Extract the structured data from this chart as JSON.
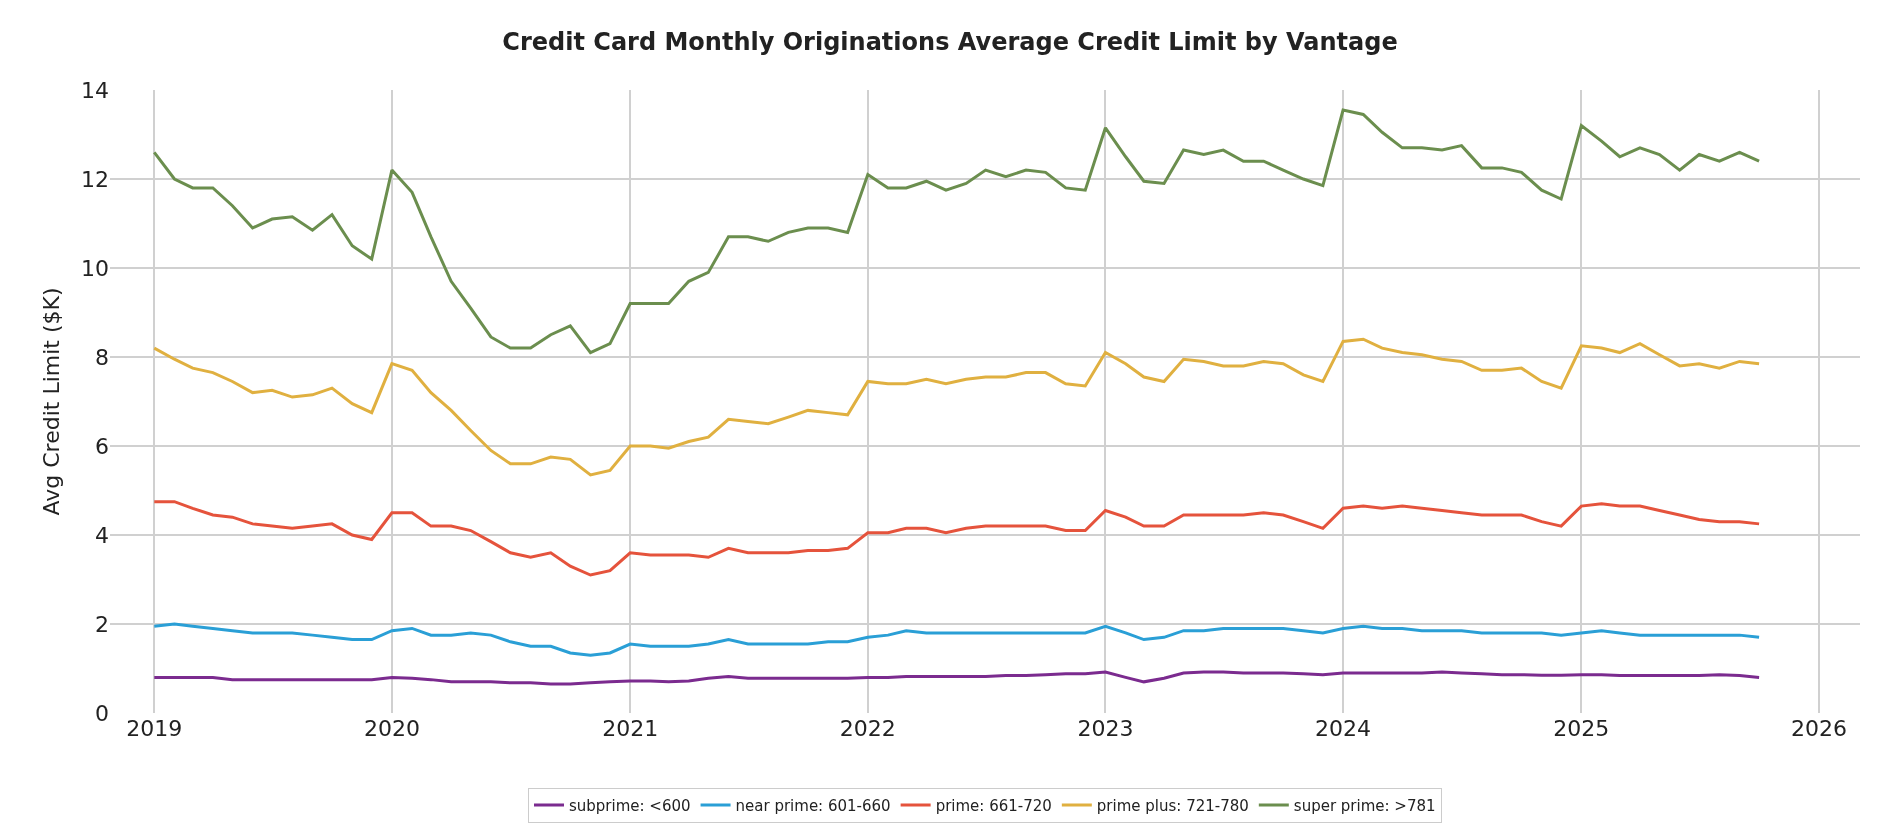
{
  "chart_data": {
    "type": "line",
    "title": "Credit Card Monthly Originations Average Credit Limit by Vantage",
    "ylabel": "Avg Credit Limit ($K)",
    "x": [
      "2019-01",
      "2019-02",
      "2019-03",
      "2019-04",
      "2019-05",
      "2019-06",
      "2019-07",
      "2019-08",
      "2019-09",
      "2019-10",
      "2019-11",
      "2019-12",
      "2020-01",
      "2020-02",
      "2020-03",
      "2020-04",
      "2020-05",
      "2020-06",
      "2020-07",
      "2020-08",
      "2020-09",
      "2020-10",
      "2020-11",
      "2020-12",
      "2021-01",
      "2021-02",
      "2021-03",
      "2021-04",
      "2021-05",
      "2021-06",
      "2021-07",
      "2021-08",
      "2021-09",
      "2021-10",
      "2021-11",
      "2021-12",
      "2022-01",
      "2022-02",
      "2022-03",
      "2022-04",
      "2022-05",
      "2022-06",
      "2022-07",
      "2022-08",
      "2022-09",
      "2022-10",
      "2022-11",
      "2022-12",
      "2023-01",
      "2023-02",
      "2023-03",
      "2023-04",
      "2023-05",
      "2023-06",
      "2023-07",
      "2023-08",
      "2023-09",
      "2023-10",
      "2023-11",
      "2023-12",
      "2024-01",
      "2024-02",
      "2024-03",
      "2024-04",
      "2024-05",
      "2024-06",
      "2024-07",
      "2024-08",
      "2024-09",
      "2024-10",
      "2024-11",
      "2024-12",
      "2025-01",
      "2025-02",
      "2025-03",
      "2025-04",
      "2025-05",
      "2025-06",
      "2025-07",
      "2025-08",
      "2025-09",
      "2025-10"
    ],
    "series": [
      {
        "name": "subprime: <600",
        "color": "#7b2b8f",
        "values": [
          0.8,
          0.8,
          0.8,
          0.8,
          0.75,
          0.75,
          0.75,
          0.75,
          0.75,
          0.75,
          0.75,
          0.75,
          0.8,
          0.78,
          0.75,
          0.7,
          0.7,
          0.7,
          0.68,
          0.68,
          0.65,
          0.65,
          0.68,
          0.7,
          0.72,
          0.72,
          0.7,
          0.72,
          0.78,
          0.82,
          0.78,
          0.78,
          0.78,
          0.78,
          0.78,
          0.78,
          0.8,
          0.8,
          0.82,
          0.82,
          0.82,
          0.82,
          0.82,
          0.84,
          0.84,
          0.86,
          0.88,
          0.88,
          0.92,
          0.8,
          0.7,
          0.78,
          0.9,
          0.92,
          0.92,
          0.9,
          0.9,
          0.9,
          0.88,
          0.86,
          0.9,
          0.9,
          0.9,
          0.9,
          0.9,
          0.92,
          0.9,
          0.88,
          0.86,
          0.86,
          0.85,
          0.85,
          0.86,
          0.86,
          0.84,
          0.84,
          0.84,
          0.84,
          0.84,
          0.86,
          0.84,
          0.8
        ]
      },
      {
        "name": "near prime: 601-660",
        "color": "#2a9fd6",
        "values": [
          1.95,
          2.0,
          1.95,
          1.9,
          1.85,
          1.8,
          1.8,
          1.8,
          1.75,
          1.7,
          1.65,
          1.65,
          1.85,
          1.9,
          1.75,
          1.75,
          1.8,
          1.75,
          1.6,
          1.5,
          1.5,
          1.35,
          1.3,
          1.35,
          1.55,
          1.5,
          1.5,
          1.5,
          1.55,
          1.65,
          1.55,
          1.55,
          1.55,
          1.55,
          1.6,
          1.6,
          1.7,
          1.75,
          1.85,
          1.8,
          1.8,
          1.8,
          1.8,
          1.8,
          1.8,
          1.8,
          1.8,
          1.8,
          1.95,
          1.8,
          1.65,
          1.7,
          1.85,
          1.85,
          1.9,
          1.9,
          1.9,
          1.9,
          1.85,
          1.8,
          1.9,
          1.95,
          1.9,
          1.9,
          1.85,
          1.85,
          1.85,
          1.8,
          1.8,
          1.8,
          1.8,
          1.75,
          1.8,
          1.85,
          1.8,
          1.75,
          1.75,
          1.75,
          1.75,
          1.75,
          1.75,
          1.7
        ]
      },
      {
        "name": "prime: 661-720",
        "color": "#e5533c",
        "values": [
          4.75,
          4.75,
          4.6,
          4.45,
          4.4,
          4.25,
          4.2,
          4.15,
          4.2,
          4.25,
          4.0,
          3.9,
          4.5,
          4.5,
          4.2,
          4.2,
          4.1,
          3.85,
          3.6,
          3.5,
          3.6,
          3.3,
          3.1,
          3.2,
          3.6,
          3.55,
          3.55,
          3.55,
          3.5,
          3.7,
          3.6,
          3.6,
          3.6,
          3.65,
          3.65,
          3.7,
          4.05,
          4.05,
          4.15,
          4.15,
          4.05,
          4.15,
          4.2,
          4.2,
          4.2,
          4.2,
          4.1,
          4.1,
          4.55,
          4.4,
          4.2,
          4.2,
          4.45,
          4.45,
          4.45,
          4.45,
          4.5,
          4.45,
          4.3,
          4.15,
          4.6,
          4.65,
          4.6,
          4.65,
          4.6,
          4.55,
          4.5,
          4.45,
          4.45,
          4.45,
          4.3,
          4.2,
          4.65,
          4.7,
          4.65,
          4.65,
          4.55,
          4.45,
          4.35,
          4.3,
          4.3,
          4.25
        ]
      },
      {
        "name": "prime plus: 721-780",
        "color": "#e0b040",
        "values": [
          8.2,
          7.95,
          7.75,
          7.65,
          7.45,
          7.2,
          7.25,
          7.1,
          7.15,
          7.3,
          6.95,
          6.75,
          7.85,
          7.7,
          7.2,
          6.8,
          6.35,
          5.9,
          5.6,
          5.6,
          5.75,
          5.7,
          5.35,
          5.45,
          6.0,
          6.0,
          5.95,
          6.1,
          6.2,
          6.6,
          6.55,
          6.5,
          6.65,
          6.8,
          6.75,
          6.7,
          7.45,
          7.4,
          7.4,
          7.5,
          7.4,
          7.5,
          7.55,
          7.55,
          7.65,
          7.65,
          7.4,
          7.35,
          8.1,
          7.85,
          7.55,
          7.45,
          7.95,
          7.9,
          7.8,
          7.8,
          7.9,
          7.85,
          7.6,
          7.45,
          8.35,
          8.4,
          8.2,
          8.1,
          8.05,
          7.95,
          7.9,
          7.7,
          7.7,
          7.75,
          7.45,
          7.3,
          8.25,
          8.2,
          8.1,
          8.3,
          8.05,
          7.8,
          7.85,
          7.75,
          7.9,
          7.85
        ]
      },
      {
        "name": "super prime: >781",
        "color": "#6b8e4e",
        "values": [
          12.6,
          12.0,
          11.8,
          11.8,
          11.4,
          10.9,
          11.1,
          11.15,
          10.85,
          11.2,
          10.5,
          10.2,
          12.2,
          11.7,
          10.7,
          9.7,
          9.1,
          8.45,
          8.2,
          8.2,
          8.5,
          8.7,
          8.1,
          8.3,
          9.2,
          9.2,
          9.2,
          9.7,
          9.9,
          10.7,
          10.7,
          10.6,
          10.8,
          10.9,
          10.9,
          10.8,
          12.1,
          11.8,
          11.8,
          11.95,
          11.75,
          11.9,
          12.2,
          12.05,
          12.2,
          12.15,
          11.8,
          11.75,
          13.15,
          12.5,
          11.95,
          11.9,
          12.65,
          12.55,
          12.65,
          12.4,
          12.4,
          12.2,
          12.0,
          11.85,
          13.55,
          13.45,
          13.05,
          12.7,
          12.7,
          12.65,
          12.75,
          12.25,
          12.25,
          12.15,
          11.75,
          11.55,
          13.2,
          12.85,
          12.5,
          12.7,
          12.55,
          12.2,
          12.55,
          12.4,
          12.6,
          12.4
        ]
      }
    ],
    "xlim": [
      "2018-10-25",
      "2026-03-05"
    ],
    "xticks": [
      "2019",
      "2020",
      "2021",
      "2022",
      "2023",
      "2024",
      "2025",
      "2026"
    ],
    "ylim": [
      0,
      14
    ],
    "yticks": [
      0,
      2,
      4,
      6,
      8,
      10,
      12,
      14
    ],
    "grid": true,
    "legend": "bottom",
    "marker": "none",
    "line_style": "solid"
  }
}
